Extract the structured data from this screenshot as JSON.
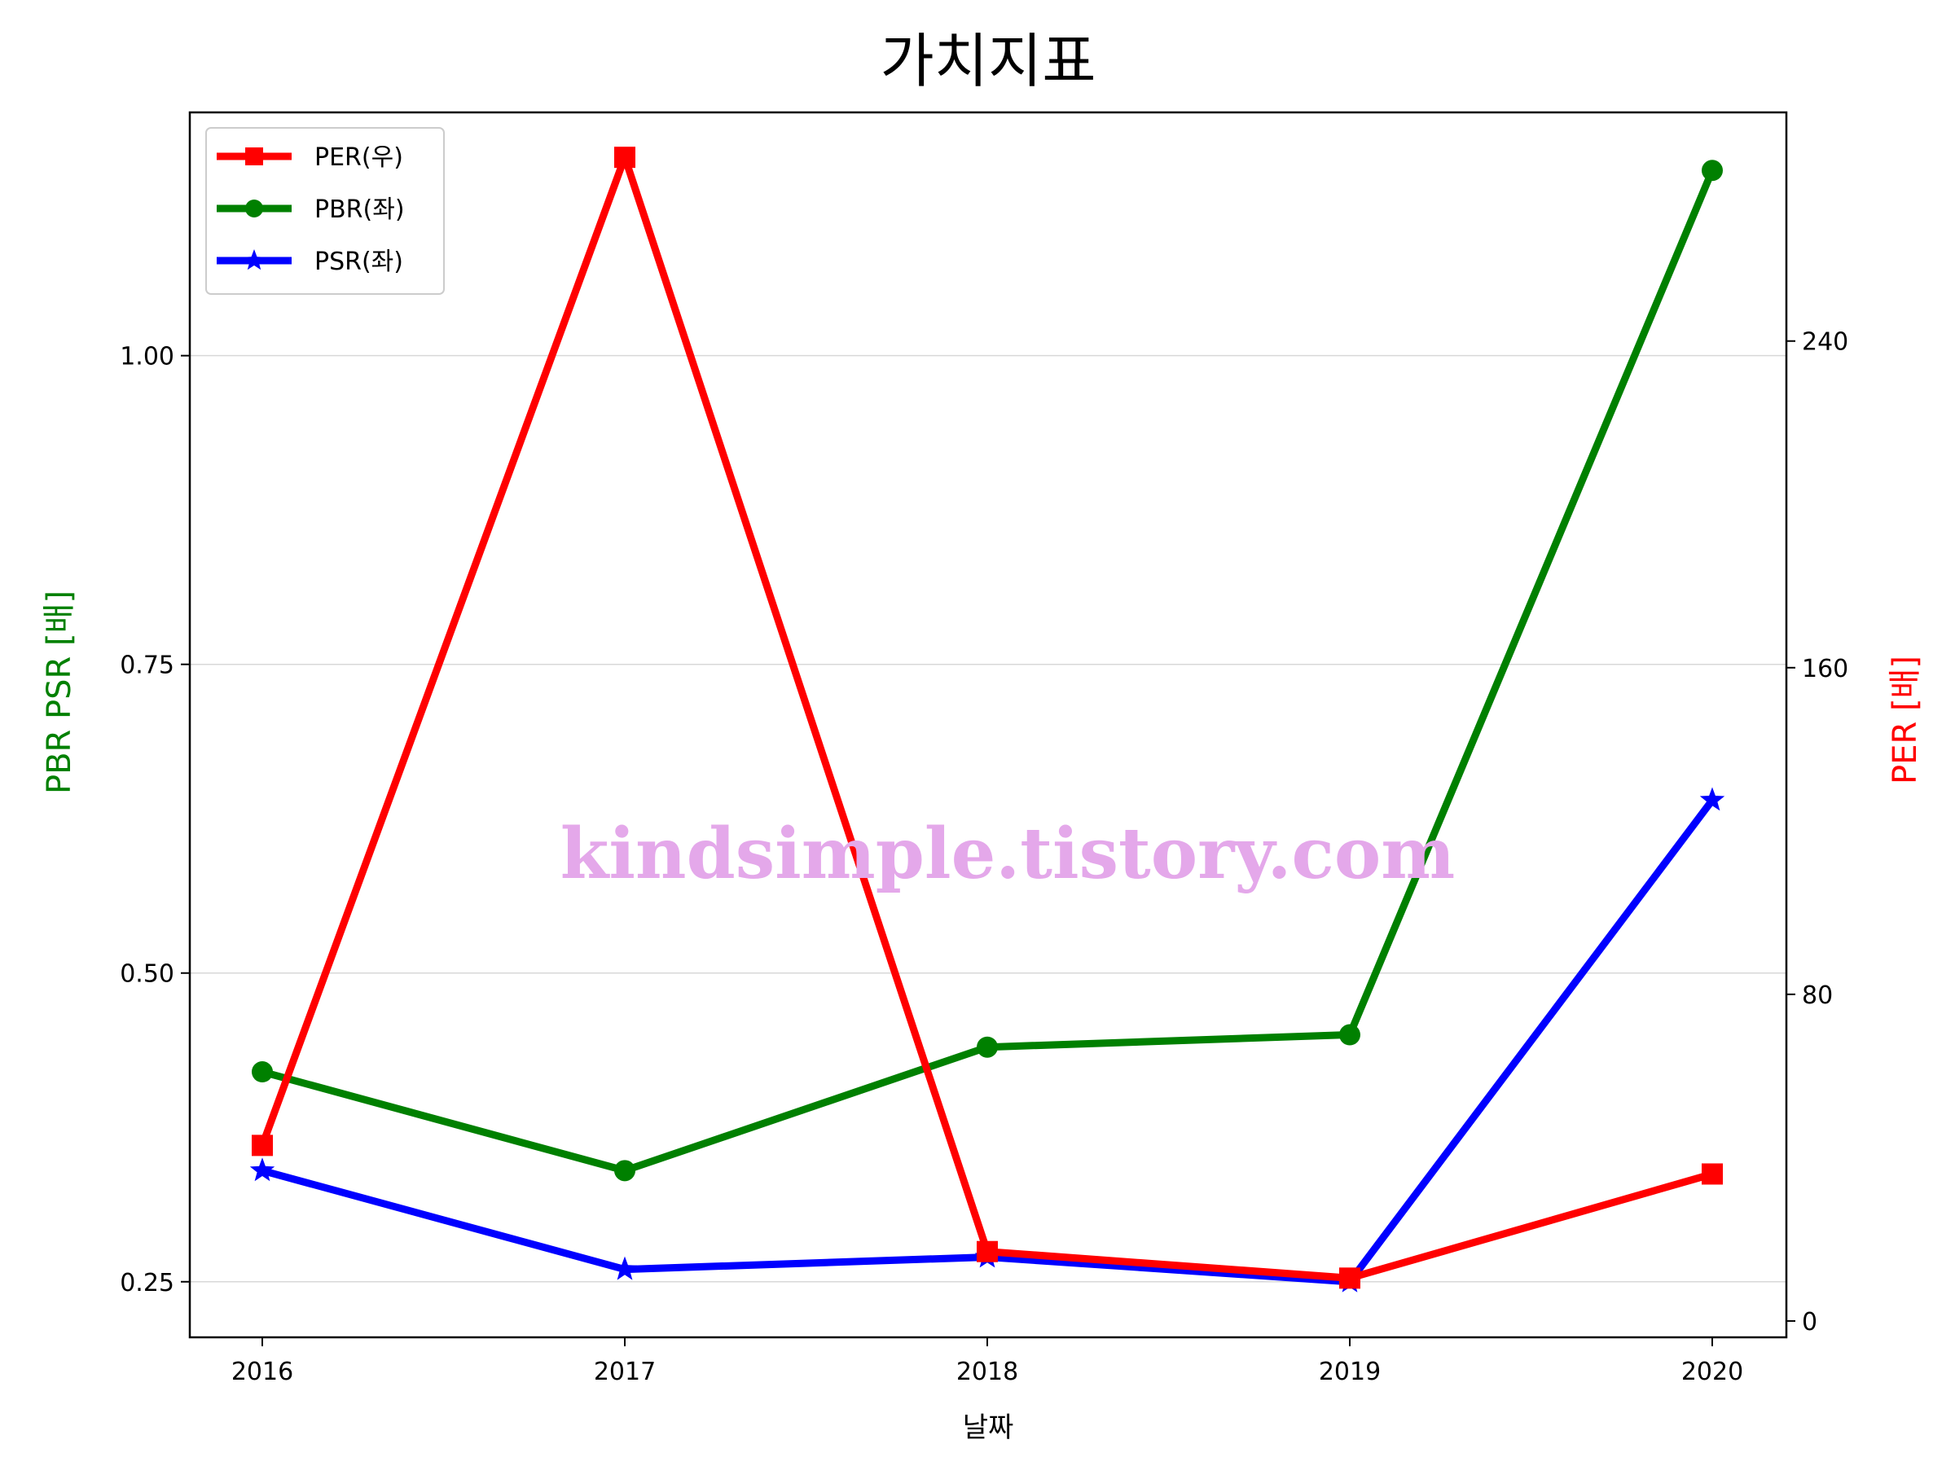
{
  "chart_data": {
    "type": "line",
    "title": "가치지표",
    "xlabel": "날짜",
    "ylabel_left": "PBR PSR [배]",
    "ylabel_right": "PER [배]",
    "ylabel_left_color": "#008000",
    "ylabel_right_color": "#ff0000",
    "categories": [
      "2016",
      "2017",
      "2018",
      "2019",
      "2020"
    ],
    "ylim_left": [
      0.205,
      1.197
    ],
    "ylim_right": [
      -4,
      296
    ],
    "yticks_left": [
      0.25,
      0.5,
      0.75,
      1.0
    ],
    "ytick_labels_left": [
      "0.25",
      "0.50",
      "0.75",
      "1.00"
    ],
    "yticks_right": [
      0,
      80,
      160,
      240
    ],
    "ytick_labels_right": [
      "0",
      "80",
      "160",
      "240"
    ],
    "grid": "horizontal",
    "legend_position": "top-left",
    "watermark": "kindsimple.tistory.com",
    "series": [
      {
        "name": "PER(우)",
        "axis": "right",
        "color": "#ff0000",
        "marker": "square",
        "values": [
          43,
          285,
          17,
          10.5,
          36
        ]
      },
      {
        "name": "PBR(좌)",
        "axis": "left",
        "color": "#008000",
        "marker": "circle",
        "values": [
          0.42,
          0.34,
          0.44,
          0.45,
          1.15
        ]
      },
      {
        "name": "PSR(좌)",
        "axis": "left",
        "color": "#0000ff",
        "marker": "star",
        "values": [
          0.34,
          0.26,
          0.27,
          0.25,
          0.64
        ]
      }
    ]
  }
}
